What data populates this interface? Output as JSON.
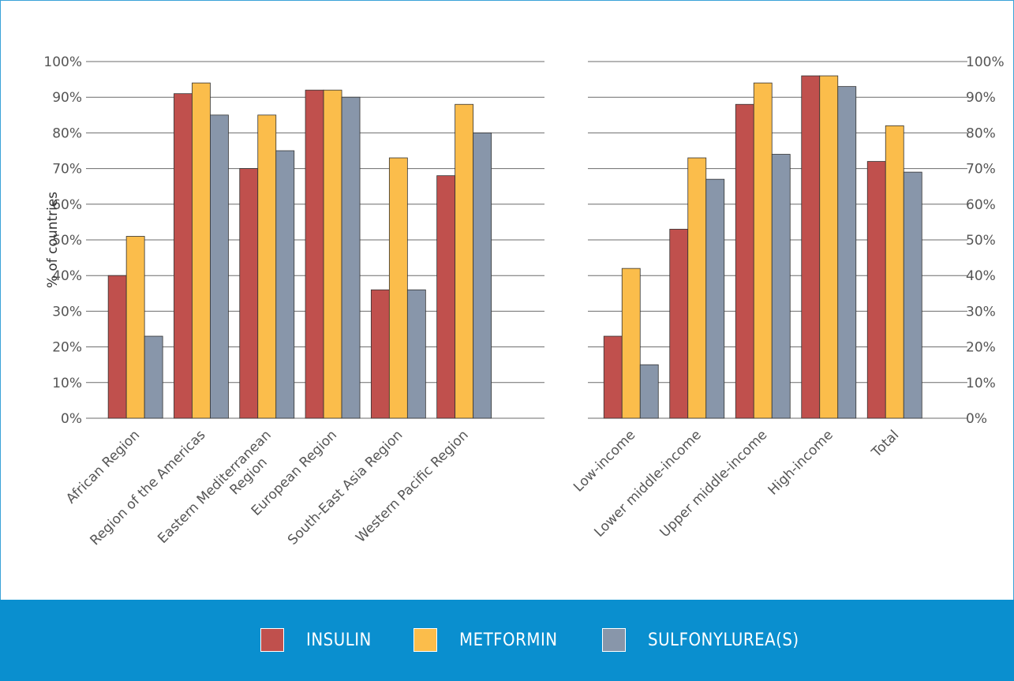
{
  "chart_data": [
    {
      "type": "bar",
      "ylabel": "% of countries",
      "ylim": [
        0,
        100
      ],
      "yticks": [
        "0%",
        "10%",
        "20%",
        "30%",
        "40%",
        "50%",
        "60%",
        "70%",
        "80%",
        "90%",
        "100%"
      ],
      "grid": true,
      "categories": [
        "African Region",
        "Region of the Americas",
        "Eastern Mediterranean Region",
        "European Region",
        "South-East Asia Region",
        "Western Pacific Region"
      ],
      "series": [
        {
          "name": "INSULIN",
          "values": [
            40,
            91,
            70,
            92,
            36,
            68
          ]
        },
        {
          "name": "METFORMIN",
          "values": [
            51,
            94,
            85,
            92,
            73,
            88
          ]
        },
        {
          "name": "SULFONYLUREA(S)",
          "values": [
            23,
            85,
            75,
            90,
            36,
            80
          ]
        }
      ]
    },
    {
      "type": "bar",
      "ylim": [
        0,
        100
      ],
      "yticks": [
        "0%",
        "10%",
        "20%",
        "30%",
        "40%",
        "50%",
        "60%",
        "70%",
        "80%",
        "90%",
        "100%"
      ],
      "grid": true,
      "categories": [
        "Low-income",
        "Lower middle-income",
        "Upper middle-income",
        "High-income",
        "Total"
      ],
      "series": [
        {
          "name": "INSULIN",
          "values": [
            23,
            53,
            88,
            96,
            72
          ]
        },
        {
          "name": "METFORMIN",
          "values": [
            42,
            73,
            94,
            96,
            82
          ]
        },
        {
          "name": "SULFONYLUREA(S)",
          "values": [
            15,
            67,
            74,
            93,
            69
          ]
        }
      ]
    }
  ],
  "colors": {
    "insulin": "#c0504d",
    "metformin": "#fbbd4b",
    "sulfonylurea": "#8896aa",
    "grid": "#6b6b6b",
    "text": "#555555",
    "legend_band": "#0a8fcf"
  },
  "legend": [
    {
      "label": "INSULIN",
      "color": "#c0504d"
    },
    {
      "label": "METFORMIN",
      "color": "#fbbd4b"
    },
    {
      "label": "SULFONYLUREA(S)",
      "color": "#8896aa"
    }
  ]
}
